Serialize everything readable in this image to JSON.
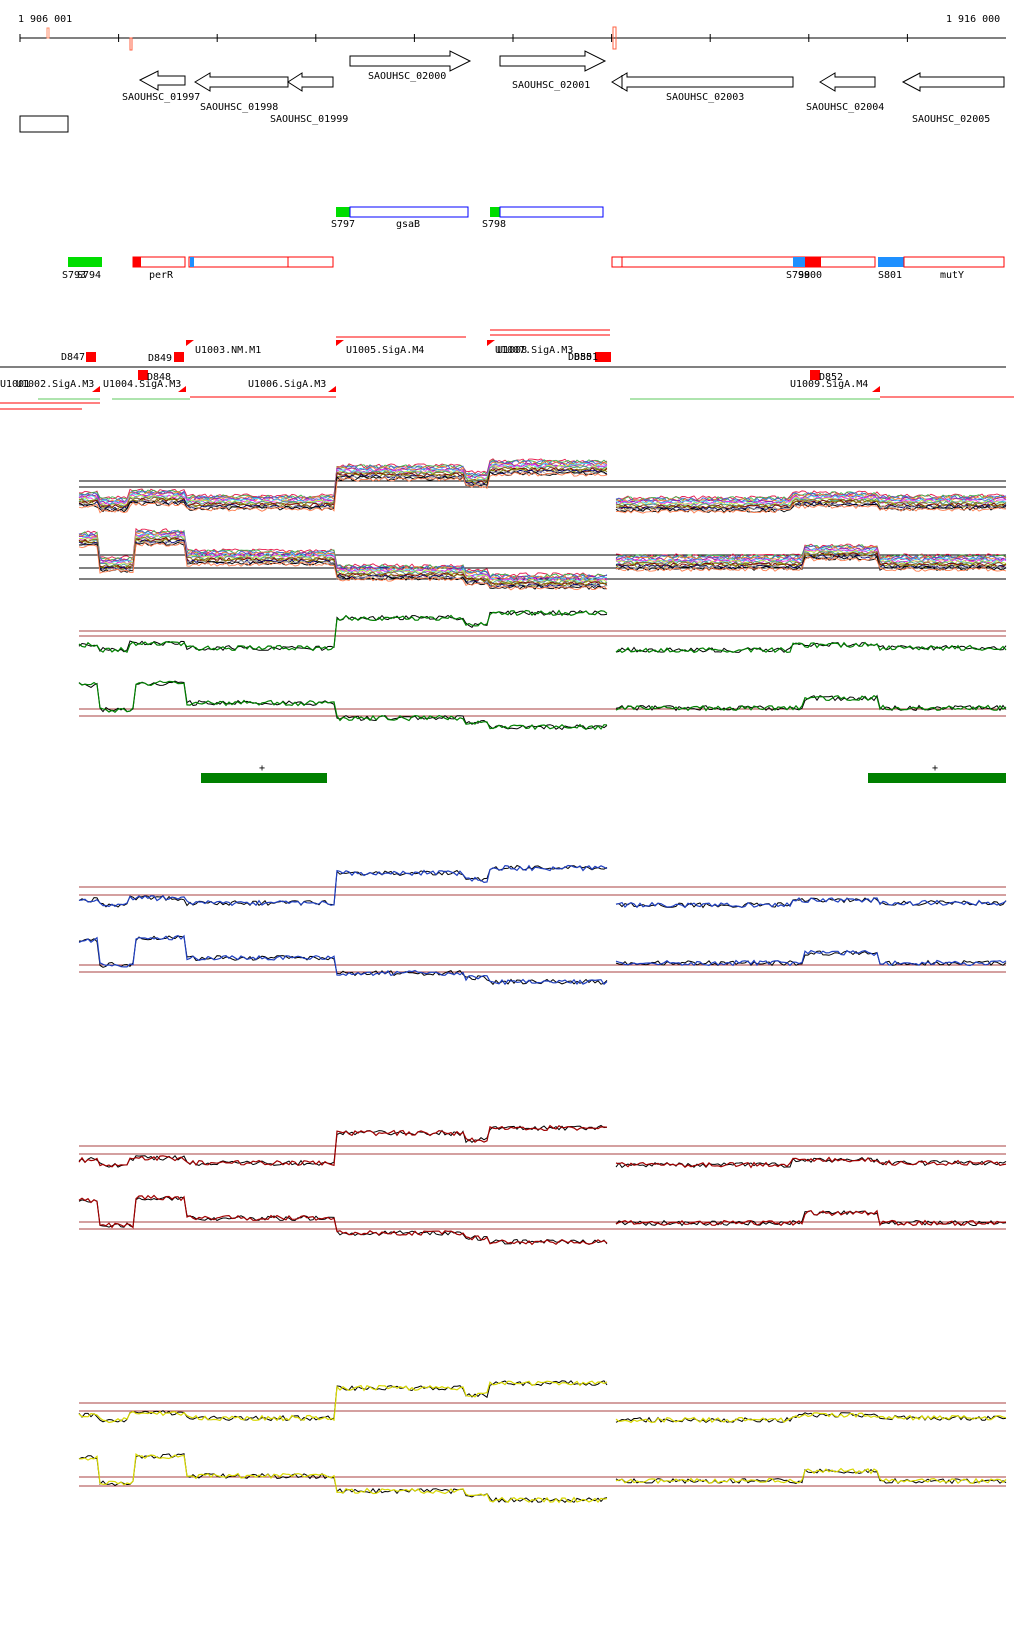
{
  "ruler": {
    "start_label": "1 906 001",
    "end_label": "1 916 000"
  },
  "genes": [
    {
      "label": "SAOUHSC_01997",
      "strand": "-"
    },
    {
      "label": "SAOUHSC_01998",
      "strand": "-"
    },
    {
      "label": "SAOUHSC_01999",
      "strand": "-"
    },
    {
      "label": "SAOUHSC_02000",
      "strand": "+"
    },
    {
      "label": "SAOUHSC_02001",
      "strand": "+"
    },
    {
      "label": "SAOUHSC_02003",
      "strand": "-"
    },
    {
      "label": "SAOUHSC_02004",
      "strand": "-"
    },
    {
      "label": "SAOUHSC_02005",
      "strand": "-"
    }
  ],
  "features_plus": [
    {
      "label": "S797",
      "name": "gsaB"
    },
    {
      "label": "S798",
      "name": ""
    }
  ],
  "features_minus": [
    {
      "label": "S793",
      "name": ""
    },
    {
      "label": "S794",
      "name": ""
    },
    {
      "label": "",
      "name": "perR"
    },
    {
      "label": "S799",
      "name": ""
    },
    {
      "label": "S800",
      "name": ""
    },
    {
      "label": "S801",
      "name": "mutY"
    }
  ],
  "tss_labels": [
    "D847",
    "D848",
    "D849",
    "D850",
    "D851",
    "D852",
    "U1001",
    "U1002.SigA.M3",
    "U1003.NM.M1",
    "U1004.SigA.M3",
    "U1005.SigA.M4",
    "U1006.SigA.M3",
    "U1007.SigA.M3",
    "U1008",
    "U1009.SigA.M4"
  ],
  "significant_marks": [
    "+",
    "+"
  ],
  "colors": {
    "panel2": "#008000",
    "panel3": "#1f3fbf",
    "panel4": "#a00000",
    "panel5": "#d8d800",
    "threshold": "#8b0000",
    "annotation": "#ff0000",
    "promoter_green": "#00dd00",
    "promoter_blue": "#1e90ff",
    "gene_box": "#0000ff"
  }
}
